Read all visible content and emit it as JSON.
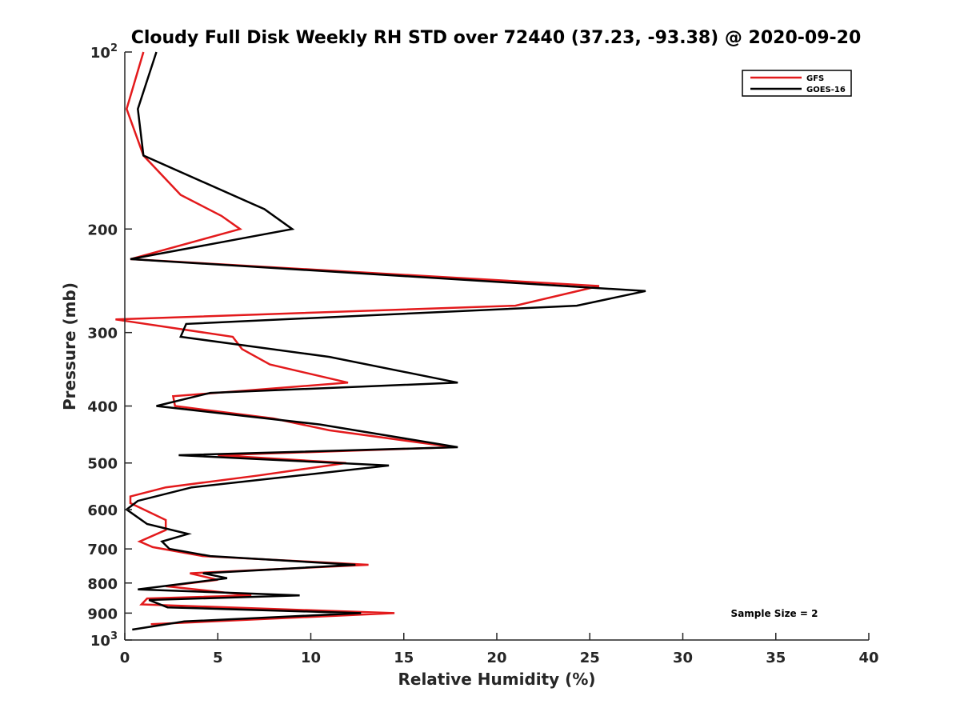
{
  "chart_data": {
    "type": "line",
    "title": "Cloudy Full Disk Weekly RH STD over 72440 (37.23, -93.38) @ 2020-09-20",
    "xlabel": "Relative Humidity (%)",
    "ylabel": "Pressure (mb)",
    "xlim": [
      0,
      40
    ],
    "ylim": [
      100,
      1000
    ],
    "y_scale": "log",
    "y_reversed": true,
    "x_ticks": [
      "0",
      "5",
      "10",
      "15",
      "20",
      "25",
      "30",
      "35",
      "40"
    ],
    "y_ticks": [
      {
        "value": 100,
        "base": "10",
        "exp": "2"
      },
      {
        "value": 200,
        "label": "200"
      },
      {
        "value": 300,
        "label": "300"
      },
      {
        "value": 400,
        "label": "400"
      },
      {
        "value": 500,
        "label": "500"
      },
      {
        "value": 600,
        "label": "600"
      },
      {
        "value": 700,
        "label": "700"
      },
      {
        "value": 800,
        "label": "800"
      },
      {
        "value": 900,
        "label": "900"
      },
      {
        "value": 1000,
        "base": "10",
        "exp": "3"
      }
    ],
    "legend": {
      "placement": "top-right"
    },
    "annotation": "Sample Size = 2",
    "series": [
      {
        "name": "GFS",
        "color": "#e31a1c",
        "points": [
          [
            1.0,
            100
          ],
          [
            0.1,
            125
          ],
          [
            1.0,
            150
          ],
          [
            3.0,
            175
          ],
          [
            5.2,
            190
          ],
          [
            6.2,
            200
          ],
          [
            0.3,
            225
          ],
          [
            25.5,
            250
          ],
          [
            21.0,
            270
          ],
          [
            -0.5,
            285
          ],
          [
            5.8,
            305
          ],
          [
            6.3,
            320
          ],
          [
            7.8,
            340
          ],
          [
            12.0,
            365
          ],
          [
            2.6,
            385
          ],
          [
            2.7,
            400
          ],
          [
            8.0,
            420
          ],
          [
            11.0,
            440
          ],
          [
            17.7,
            470
          ],
          [
            5.0,
            485
          ],
          [
            11.9,
            500
          ],
          [
            7.2,
            525
          ],
          [
            2.2,
            550
          ],
          [
            0.3,
            570
          ],
          [
            0.3,
            585
          ],
          [
            2.2,
            625
          ],
          [
            2.2,
            650
          ],
          [
            0.8,
            680
          ],
          [
            1.5,
            695
          ],
          [
            4.2,
            720
          ],
          [
            13.1,
            745
          ],
          [
            3.5,
            770
          ],
          [
            5.0,
            790
          ],
          [
            2.2,
            810
          ],
          [
            6.8,
            840
          ],
          [
            1.2,
            850
          ],
          [
            0.9,
            870
          ],
          [
            14.5,
            900
          ],
          [
            1.4,
            940
          ]
        ]
      },
      {
        "name": "GOES-16",
        "color": "#000000",
        "points": [
          [
            1.7,
            100
          ],
          [
            0.7,
            125
          ],
          [
            1.0,
            150
          ],
          [
            7.5,
            185
          ],
          [
            9.0,
            200
          ],
          [
            0.3,
            225
          ],
          [
            28.0,
            255
          ],
          [
            24.3,
            270
          ],
          [
            3.3,
            290
          ],
          [
            3.0,
            305
          ],
          [
            11.0,
            330
          ],
          [
            17.9,
            365
          ],
          [
            4.6,
            380
          ],
          [
            1.7,
            400
          ],
          [
            10.5,
            430
          ],
          [
            17.9,
            470
          ],
          [
            2.9,
            485
          ],
          [
            14.2,
            505
          ],
          [
            9.4,
            525
          ],
          [
            3.6,
            550
          ],
          [
            0.7,
            580
          ],
          [
            0.1,
            600
          ],
          [
            1.2,
            635
          ],
          [
            3.4,
            660
          ],
          [
            2.0,
            680
          ],
          [
            2.4,
            700
          ],
          [
            4.6,
            720
          ],
          [
            12.4,
            745
          ],
          [
            4.2,
            770
          ],
          [
            5.5,
            785
          ],
          [
            0.7,
            820
          ],
          [
            9.4,
            840
          ],
          [
            1.3,
            855
          ],
          [
            2.3,
            880
          ],
          [
            12.7,
            900
          ],
          [
            3.2,
            930
          ],
          [
            0.4,
            960
          ]
        ]
      }
    ]
  }
}
